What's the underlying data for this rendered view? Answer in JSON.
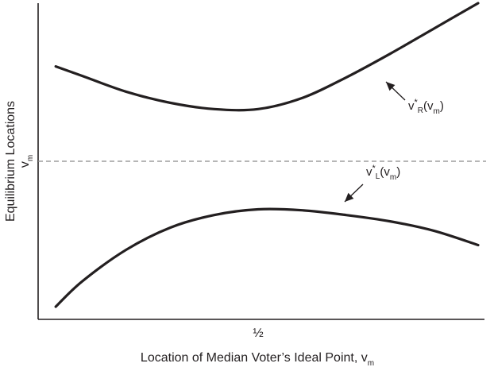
{
  "chart_data": {
    "type": "line",
    "title": "",
    "xlabel": "Location of Median Voter’s Ideal Point, v",
    "xlabel_sub": "m",
    "ylabel": "Equilibrium Locations",
    "x_ticks": [
      "½"
    ],
    "y_ticks": [
      {
        "main": "v",
        "sub": "m"
      }
    ],
    "xlim": [
      0,
      1
    ],
    "ylim": [
      0,
      1
    ],
    "reference_line": {
      "y": 0.5,
      "style": "dashed",
      "label": "v_m"
    },
    "grid": false,
    "legend": "none",
    "series": [
      {
        "name": "v_R*(v_m)",
        "label_main": "v",
        "label_sub": "R",
        "label_sup": "*",
        "label_tail": "(v",
        "label_tail_sub": "m",
        "label_close": ")",
        "color": "#231f20",
        "x": [
          0.04,
          0.1,
          0.2,
          0.3,
          0.4,
          0.5,
          0.6,
          0.7,
          0.8,
          0.9,
          1.0
        ],
        "values": [
          0.8,
          0.77,
          0.72,
          0.685,
          0.665,
          0.665,
          0.7,
          0.765,
          0.84,
          0.92,
          1.0
        ]
      },
      {
        "name": "v_L*(v_m)",
        "label_main": "v",
        "label_sub": "L",
        "label_sup": "*",
        "label_tail": "(v",
        "label_tail_sub": "m",
        "label_close": ")",
        "color": "#231f20",
        "x": [
          0.04,
          0.1,
          0.2,
          0.3,
          0.4,
          0.5,
          0.6,
          0.7,
          0.8,
          0.9,
          1.0
        ],
        "values": [
          0.04,
          0.12,
          0.22,
          0.29,
          0.33,
          0.348,
          0.345,
          0.33,
          0.31,
          0.28,
          0.235
        ]
      }
    ]
  }
}
